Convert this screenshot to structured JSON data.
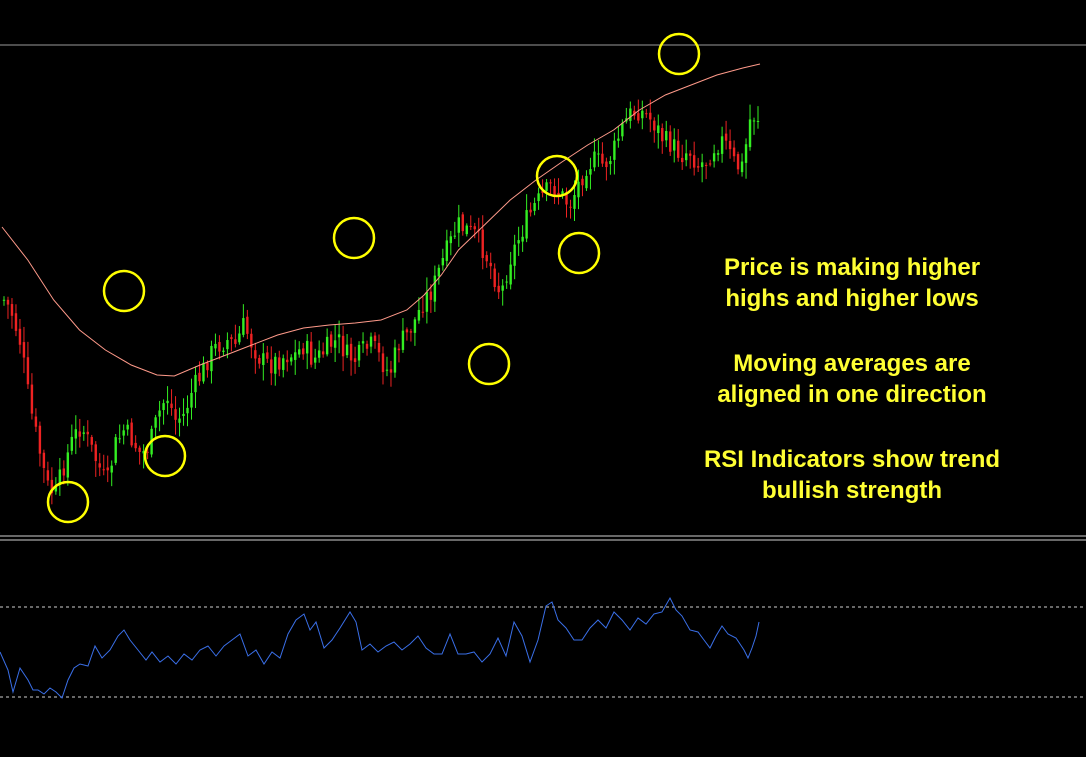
{
  "chart_data": [
    {
      "type": "candlestick",
      "title": "",
      "xlabel": "",
      "ylabel": "",
      "grid": false,
      "colors": {
        "bull": "#33ee22",
        "bear": "#ee2222",
        "ma": "#ff9a8a",
        "marker": "#ffff00",
        "separator": "#cfcfcf"
      },
      "candle_count": 190,
      "ylim": [
        0,
        520
      ],
      "close_path_anchors": [
        [
          0,
          255
        ],
        [
          4,
          265
        ],
        [
          10,
          300
        ],
        [
          15,
          360
        ],
        [
          20,
          400
        ],
        [
          25,
          440
        ],
        [
          30,
          450
        ],
        [
          35,
          420
        ],
        [
          40,
          395
        ],
        [
          45,
          380
        ],
        [
          50,
          400
        ],
        [
          55,
          420
        ],
        [
          60,
          440
        ],
        [
          65,
          400
        ],
        [
          70,
          385
        ],
        [
          75,
          395
        ],
        [
          80,
          410
        ],
        [
          85,
          400
        ],
        [
          90,
          370
        ],
        [
          95,
          350
        ],
        [
          100,
          375
        ],
        [
          105,
          370
        ],
        [
          110,
          345
        ],
        [
          115,
          330
        ],
        [
          120,
          310
        ],
        [
          125,
          300
        ],
        [
          130,
          295
        ],
        [
          135,
          300
        ],
        [
          140,
          280
        ],
        [
          145,
          300
        ],
        [
          150,
          315
        ],
        [
          155,
          320
        ],
        [
          160,
          315
        ],
        [
          165,
          310
        ],
        [
          170,
          310
        ],
        [
          175,
          300
        ],
        [
          180,
          315
        ],
        [
          185,
          310
        ],
        [
          190,
          300
        ],
        [
          195,
          295
        ],
        [
          200,
          310
        ],
        [
          205,
          315
        ],
        [
          210,
          305
        ],
        [
          215,
          300
        ],
        [
          220,
          315
        ],
        [
          225,
          330
        ],
        [
          230,
          300
        ],
        [
          235,
          290
        ],
        [
          240,
          275
        ],
        [
          245,
          255
        ],
        [
          250,
          245
        ],
        [
          255,
          220
        ],
        [
          260,
          200
        ],
        [
          265,
          180
        ],
        [
          270,
          185
        ],
        [
          275,
          190
        ],
        [
          280,
          205
        ],
        [
          285,
          225
        ],
        [
          290,
          250
        ],
        [
          295,
          215
        ],
        [
          300,
          195
        ],
        [
          305,
          175
        ],
        [
          310,
          160
        ],
        [
          315,
          150
        ],
        [
          320,
          140
        ],
        [
          325,
          150
        ],
        [
          330,
          160
        ],
        [
          335,
          140
        ],
        [
          340,
          120
        ],
        [
          345,
          115
        ],
        [
          350,
          120
        ],
        [
          355,
          110
        ],
        [
          360,
          85
        ],
        [
          365,
          70
        ],
        [
          370,
          65
        ],
        [
          375,
          70
        ],
        [
          380,
          80
        ],
        [
          385,
          95
        ],
        [
          390,
          100
        ],
        [
          395,
          110
        ],
        [
          400,
          105
        ],
        [
          405,
          120
        ],
        [
          410,
          115
        ],
        [
          415,
          100
        ],
        [
          420,
          95
        ],
        [
          425,
          115
        ],
        [
          430,
          125
        ],
        [
          432,
          115
        ],
        [
          434,
          85
        ],
        [
          436,
          70
        ],
        [
          440,
          72
        ]
      ],
      "moving_average_anchors": [
        [
          0,
          227
        ],
        [
          15,
          260
        ],
        [
          30,
          300
        ],
        [
          45,
          330
        ],
        [
          60,
          350
        ],
        [
          75,
          365
        ],
        [
          90,
          375
        ],
        [
          100,
          376
        ],
        [
          115,
          365
        ],
        [
          130,
          355
        ],
        [
          145,
          345
        ],
        [
          160,
          335
        ],
        [
          175,
          328
        ],
        [
          190,
          325
        ],
        [
          205,
          323
        ],
        [
          220,
          320
        ],
        [
          235,
          310
        ],
        [
          245,
          295
        ],
        [
          255,
          275
        ],
        [
          265,
          250
        ],
        [
          280,
          225
        ],
        [
          295,
          200
        ],
        [
          310,
          180
        ],
        [
          325,
          162
        ],
        [
          340,
          145
        ],
        [
          355,
          130
        ],
        [
          370,
          110
        ],
        [
          385,
          95
        ],
        [
          400,
          85
        ],
        [
          415,
          75
        ],
        [
          430,
          68
        ],
        [
          440,
          64
        ]
      ],
      "circled_points": [
        {
          "kind": "low",
          "x": 68,
          "y": 502
        },
        {
          "kind": "high",
          "x": 124,
          "y": 291
        },
        {
          "kind": "low",
          "x": 165,
          "y": 456
        },
        {
          "kind": "high",
          "x": 354,
          "y": 238
        },
        {
          "kind": "low",
          "x": 489,
          "y": 364
        },
        {
          "kind": "high",
          "x": 557,
          "y": 176
        },
        {
          "kind": "low",
          "x": 579,
          "y": 253
        },
        {
          "kind": "high",
          "x": 679,
          "y": 54
        }
      ],
      "horizontal_lines": [
        45
      ]
    },
    {
      "type": "line",
      "title": "",
      "xlabel": "",
      "ylabel": "",
      "series": [
        {
          "color": "#3a6fe8",
          "anchors": [
            [
              0,
              652
            ],
            [
              8,
              670
            ],
            [
              13,
              692
            ],
            [
              20,
              668
            ],
            [
              28,
              680
            ],
            [
              33,
              690
            ],
            [
              38,
              690
            ],
            [
              44,
              694
            ],
            [
              50,
              688
            ],
            [
              56,
              692
            ],
            [
              62,
              698
            ],
            [
              68,
              680
            ],
            [
              74,
              668
            ],
            [
              80,
              664
            ],
            [
              88,
              666
            ],
            [
              95,
              646
            ],
            [
              102,
              658
            ],
            [
              110,
              650
            ],
            [
              118,
              636
            ],
            [
              124,
              630
            ],
            [
              130,
              640
            ],
            [
              138,
              650
            ],
            [
              146,
              660
            ],
            [
              152,
              652
            ],
            [
              160,
              662
            ],
            [
              168,
              656
            ],
            [
              176,
              664
            ],
            [
              184,
              654
            ],
            [
              192,
              660
            ],
            [
              200,
              650
            ],
            [
              208,
              646
            ],
            [
              216,
              656
            ],
            [
              224,
              646
            ],
            [
              232,
              640
            ],
            [
              240,
              634
            ],
            [
              248,
              656
            ],
            [
              256,
              650
            ],
            [
              264,
              664
            ],
            [
              272,
              652
            ],
            [
              280,
              658
            ],
            [
              288,
              634
            ],
            [
              296,
              620
            ],
            [
              304,
              614
            ],
            [
              310,
              630
            ],
            [
              316,
              622
            ],
            [
              324,
              648
            ],
            [
              332,
              640
            ],
            [
              340,
              628
            ],
            [
              350,
              612
            ],
            [
              356,
              622
            ],
            [
              362,
              650
            ],
            [
              370,
              644
            ],
            [
              378,
              652
            ],
            [
              386,
              646
            ],
            [
              394,
              642
            ],
            [
              402,
              650
            ],
            [
              410,
              644
            ],
            [
              418,
              636
            ],
            [
              426,
              648
            ],
            [
              434,
              654
            ],
            [
              442,
              654
            ],
            [
              450,
              634
            ],
            [
              458,
              654
            ],
            [
              466,
              654
            ],
            [
              474,
              652
            ],
            [
              482,
              662
            ],
            [
              490,
              654
            ],
            [
              498,
              638
            ],
            [
              506,
              656
            ],
            [
              514,
              622
            ],
            [
              522,
              636
            ],
            [
              530,
              662
            ],
            [
              538,
              640
            ],
            [
              546,
              606
            ],
            [
              552,
              602
            ],
            [
              558,
              620
            ],
            [
              566,
              628
            ],
            [
              574,
              640
            ],
            [
              582,
              640
            ],
            [
              590,
              628
            ],
            [
              598,
              620
            ],
            [
              606,
              628
            ],
            [
              614,
              612
            ],
            [
              622,
              620
            ],
            [
              630,
              630
            ],
            [
              638,
              618
            ],
            [
              646,
              624
            ],
            [
              654,
              614
            ],
            [
              662,
              612
            ],
            [
              670,
              598
            ],
            [
              676,
              610
            ],
            [
              682,
              616
            ],
            [
              690,
              630
            ],
            [
              698,
              632
            ],
            [
              704,
              640
            ],
            [
              710,
              648
            ],
            [
              716,
              636
            ],
            [
              722,
              626
            ],
            [
              728,
              634
            ],
            [
              736,
              638
            ],
            [
              744,
              650
            ],
            [
              748,
              658
            ],
            [
              752,
              648
            ],
            [
              756,
              636
            ],
            [
              759,
              622
            ]
          ]
        }
      ],
      "reference_lines": [
        607,
        697
      ]
    }
  ],
  "annotations": [
    {
      "lines": [
        "Price is making higher",
        "highs and higher lows"
      ]
    },
    {
      "lines": [
        "Moving averages are",
        "aligned in one direction"
      ]
    },
    {
      "lines": [
        "RSI Indicators show trend",
        "bullish strength"
      ]
    }
  ]
}
